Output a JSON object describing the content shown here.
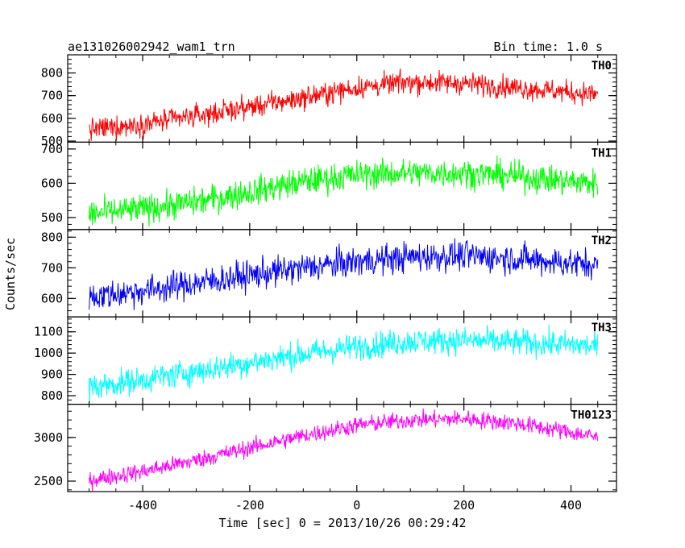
{
  "header": {
    "title": "ae131026002942_wam1_trn",
    "bin_time": "Bin time: 1.0 s"
  },
  "chart_data": {
    "type": "line",
    "xlabel": "Time [sec] 0 = 2013/10/26 00:29:42",
    "ylabel": "Counts/sec",
    "xlim": [
      -540,
      485
    ],
    "x_ticks": [
      -400,
      -200,
      0,
      200,
      400
    ],
    "x_range": [
      -500,
      450
    ],
    "panels": [
      {
        "name": "TH0",
        "color": "#ff0000",
        "ylim": [
          495,
          880
        ],
        "yticks": [
          500,
          600,
          700,
          800
        ],
        "trend_x": [
          -500,
          -400,
          -300,
          -200,
          -100,
          0,
          100,
          200,
          300,
          400,
          450
        ],
        "trend_y": [
          550,
          575,
          610,
          650,
          690,
          735,
          760,
          755,
          735,
          715,
          705
        ],
        "noise": 35
      },
      {
        "name": "TH1",
        "color": "#00ff00",
        "ylim": [
          465,
          720
        ],
        "yticks": [
          500,
          600,
          700
        ],
        "trend_x": [
          -500,
          -400,
          -300,
          -200,
          -100,
          0,
          100,
          200,
          300,
          400,
          450
        ],
        "trend_y": [
          510,
          525,
          545,
          575,
          605,
          625,
          630,
          630,
          620,
          605,
          600
        ],
        "noise": 30
      },
      {
        "name": "TH2",
        "color": "#0000ff",
        "ylim": [
          540,
          825
        ],
        "yticks": [
          600,
          700,
          800
        ],
        "trend_x": [
          -500,
          -400,
          -300,
          -200,
          -100,
          0,
          100,
          200,
          300,
          400,
          450
        ],
        "trend_y": [
          605,
          625,
          650,
          675,
          700,
          720,
          735,
          740,
          730,
          715,
          710
        ],
        "noise": 35
      },
      {
        "name": "TH3",
        "color": "#00ffff",
        "ylim": [
          760,
          1170
        ],
        "yticks": [
          800,
          900,
          1000,
          1100
        ],
        "trend_x": [
          -500,
          -400,
          -300,
          -200,
          -100,
          0,
          100,
          200,
          300,
          400,
          450
        ],
        "trend_y": [
          840,
          875,
          915,
          955,
          995,
          1030,
          1055,
          1060,
          1050,
          1040,
          1030
        ],
        "noise": 45
      },
      {
        "name": "TH0123",
        "color": "#ff00ff",
        "ylim": [
          2380,
          3380
        ],
        "yticks": [
          2500,
          3000
        ],
        "trend_x": [
          -500,
          -400,
          -300,
          -200,
          -100,
          0,
          100,
          200,
          300,
          400,
          450
        ],
        "trend_y": [
          2510,
          2610,
          2740,
          2880,
          3020,
          3140,
          3200,
          3215,
          3160,
          3060,
          3000
        ],
        "noise": 70
      }
    ]
  }
}
